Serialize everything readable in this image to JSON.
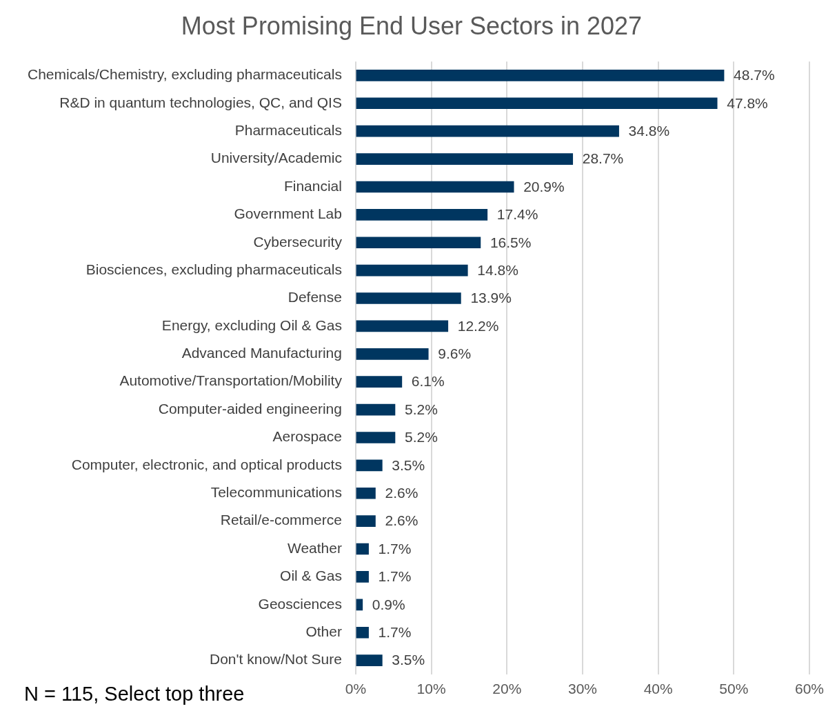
{
  "chart_data": {
    "type": "bar",
    "orientation": "horizontal",
    "title": "Most Promising End User Sectors in 2027",
    "categories": [
      "Chemicals/Chemistry, excluding pharmaceuticals",
      "R&D in quantum technologies, QC, and QIS",
      "Pharmaceuticals",
      "University/Academic",
      "Financial",
      "Government Lab",
      "Cybersecurity",
      "Biosciences, excluding pharmaceuticals",
      "Defense",
      "Energy, excluding Oil & Gas",
      "Advanced Manufacturing",
      "Automotive/Transportation/Mobility",
      "Computer-aided engineering",
      "Aerospace",
      "Computer, electronic, and optical products",
      "Telecommunications",
      "Retail/e-commerce",
      "Weather",
      "Oil & Gas",
      "Geosciences",
      "Other",
      "Don't know/Not Sure"
    ],
    "values": [
      48.7,
      47.8,
      34.8,
      28.7,
      20.9,
      17.4,
      16.5,
      14.8,
      13.9,
      12.2,
      9.6,
      6.1,
      5.2,
      5.2,
      3.5,
      2.6,
      2.6,
      1.7,
      1.7,
      0.9,
      1.7,
      3.5
    ],
    "value_labels": [
      "48.7%",
      "47.8%",
      "34.8%",
      "28.7%",
      "20.9%",
      "17.4%",
      "16.5%",
      "14.8%",
      "13.9%",
      "12.2%",
      "9.6%",
      "6.1%",
      "5.2%",
      "5.2%",
      "3.5%",
      "2.6%",
      "2.6%",
      "1.7%",
      "1.7%",
      "0.9%",
      "1.7%",
      "3.5%"
    ],
    "color": "#003660",
    "xlim": [
      0,
      60
    ],
    "xticks": [
      {
        "value": 0,
        "label": "0%"
      },
      {
        "value": 10,
        "label": "10%"
      },
      {
        "value": 20,
        "label": "20%"
      },
      {
        "value": 30,
        "label": "30%"
      },
      {
        "value": 40,
        "label": "40%"
      },
      {
        "value": 50,
        "label": "50%"
      },
      {
        "value": 60,
        "label": "60%"
      }
    ],
    "grid": "x",
    "annotations": [
      "N = 115, Select top three"
    ]
  }
}
